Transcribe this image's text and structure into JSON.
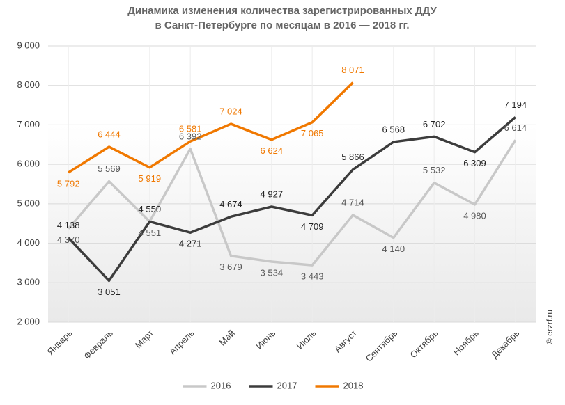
{
  "chart_data": {
    "type": "line",
    "title": "Динамика изменения количества зарегистрированных ДДУ",
    "subtitle": "в Санкт-Петербурге по месяцам в 2016 — 2018 гг.",
    "watermark": "© erzrf.ru",
    "categories": [
      "Январь",
      "Февраль",
      "Март",
      "Апрель",
      "Май",
      "Июнь",
      "Июль",
      "Август",
      "Сентябрь",
      "Октябрь",
      "Ноябрь",
      "Декабрь"
    ],
    "series": [
      {
        "name": "2016",
        "color": "#c8c8c8",
        "values": [
          4370,
          5569,
          4551,
          6392,
          3679,
          3534,
          3443,
          4714,
          4140,
          5532,
          4980,
          6614
        ],
        "value_labels": [
          "4 370",
          "5 569",
          "4 551",
          "6 392",
          "3 679",
          "3 534",
          "3 443",
          "4 714",
          "4 140",
          "5 532",
          "4 980",
          "6 614"
        ]
      },
      {
        "name": "2017",
        "color": "#3c3c3c",
        "values": [
          4138,
          3051,
          4550,
          4271,
          4674,
          4927,
          4709,
          5866,
          6568,
          6702,
          6309,
          7194
        ],
        "value_labels": [
          "4 138",
          "3 051",
          "4 550",
          "4 271",
          "4 674",
          "4 927",
          "4 709",
          "5 866",
          "6 568",
          "6 702",
          "6 309",
          "7 194"
        ]
      },
      {
        "name": "2018",
        "color": "#f07800",
        "values": [
          5792,
          6444,
          5919,
          6581,
          7024,
          6624,
          7065,
          8071,
          null,
          null,
          null,
          null
        ],
        "value_labels": [
          "5 792",
          "6 444",
          "5 919",
          "6 581",
          "7 024",
          "6 624",
          "7 065",
          "8 071",
          null,
          null,
          null,
          null
        ]
      }
    ],
    "ylim": [
      2000,
      9000
    ],
    "yticks": [
      {
        "value": 2000,
        "label": "2 000"
      },
      {
        "value": 3000,
        "label": "3 000"
      },
      {
        "value": 4000,
        "label": "4 000"
      },
      {
        "value": 5000,
        "label": "5 000"
      },
      {
        "value": 6000,
        "label": "6 000"
      },
      {
        "value": 7000,
        "label": "7 000"
      },
      {
        "value": 8000,
        "label": "8 000"
      },
      {
        "value": 9000,
        "label": "9 000"
      }
    ],
    "grid": true,
    "legend": "bottom"
  }
}
